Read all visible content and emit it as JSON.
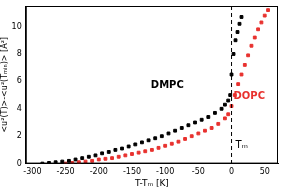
{
  "chart_data": {
    "type": "scatter",
    "x_label": "T-Tₘ [K]",
    "y_label": "<u²(T)>-<u²(Tₘᵢₙ)> [Å²]",
    "xlim": [
      -310,
      70
    ],
    "xticks": [
      -300,
      -250,
      -200,
      -150,
      -100,
      -50,
      0,
      50
    ],
    "ylim": [
      0,
      11.5
    ],
    "yticks": [
      0,
      2,
      4,
      6,
      8,
      10
    ],
    "grid": false,
    "series": [
      {
        "name": "DMPC",
        "color": "#000000",
        "marker": "square",
        "label_at": [
          -72,
          5.7
        ],
        "x": [
          -285,
          -275,
          -265,
          -255,
          -245,
          -235,
          -225,
          -215,
          -205,
          -195,
          -185,
          -175,
          -165,
          -155,
          -145,
          -135,
          -125,
          -115,
          -105,
          -95,
          -85,
          -75,
          -65,
          -55,
          -45,
          -35,
          -25,
          -15,
          -10,
          -5,
          -2,
          0,
          3,
          6,
          9,
          12,
          15
        ],
        "values": [
          0,
          0.05,
          0.1,
          0.15,
          0.2,
          0.3,
          0.4,
          0.5,
          0.6,
          0.75,
          0.85,
          1.0,
          1.1,
          1.25,
          1.4,
          1.55,
          1.7,
          1.85,
          2.0,
          2.2,
          2.4,
          2.6,
          2.8,
          3.0,
          3.2,
          3.4,
          3.7,
          4.0,
          4.3,
          4.6,
          5.0,
          6.5,
          8.0,
          9.0,
          9.6,
          10.2,
          10.7
        ]
      },
      {
        "name": "DOPC",
        "color": "#e8322f",
        "marker": "square",
        "label_at": [
          3,
          4.9
        ],
        "x": [
          -250,
          -240,
          -230,
          -220,
          -210,
          -200,
          -190,
          -180,
          -170,
          -160,
          -150,
          -140,
          -130,
          -120,
          -110,
          -100,
          -90,
          -80,
          -70,
          -60,
          -50,
          -40,
          -30,
          -20,
          -10,
          -5,
          0,
          5,
          10,
          15,
          20,
          25,
          30,
          35,
          40,
          45,
          50,
          55
        ],
        "values": [
          0,
          0.05,
          0.1,
          0.15,
          0.2,
          0.3,
          0.35,
          0.4,
          0.5,
          0.6,
          0.7,
          0.8,
          0.9,
          1.0,
          1.15,
          1.3,
          1.45,
          1.6,
          1.8,
          2.0,
          2.2,
          2.4,
          2.6,
          2.9,
          3.3,
          3.6,
          4.2,
          5.0,
          5.8,
          6.5,
          7.2,
          7.9,
          8.6,
          9.2,
          9.8,
          10.3,
          10.8,
          11.2
        ]
      }
    ],
    "vlines": [
      {
        "x": 0,
        "line_style": "dashed"
      }
    ],
    "annotations": [
      {
        "text": "Tₘ",
        "x": 6,
        "y": 1.3
      }
    ]
  }
}
